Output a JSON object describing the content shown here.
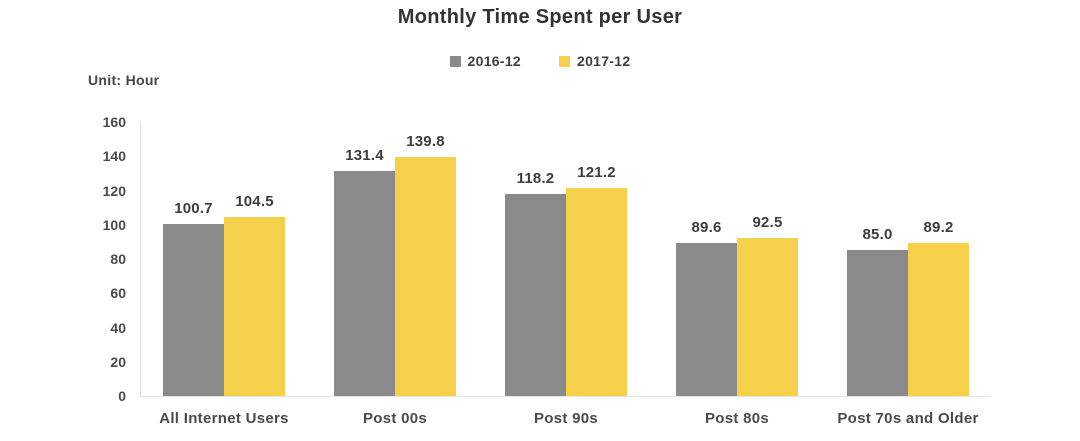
{
  "title": "Monthly Time Spent per User",
  "unit_label": "Unit: Hour",
  "colors": {
    "series_2016": "#8a8a8a",
    "series_2017": "#f5d04b",
    "axis_line": "#e0e0e0",
    "text": "#4a4a4a",
    "title_text": "#333333"
  },
  "legend": [
    {
      "label": "2016-12",
      "color": "#8a8a8a"
    },
    {
      "label": "2017-12",
      "color": "#f5d04b"
    }
  ],
  "chart_data": {
    "type": "bar",
    "title": "Monthly Time Spent per User",
    "categories": [
      "All Internet Users",
      "Post 00s",
      "Post 90s",
      "Post 80s",
      "Post 70s and Older"
    ],
    "series": [
      {
        "name": "2016-12",
        "color": "#8a8a8a",
        "values": [
          100.7,
          131.4,
          118.2,
          89.6,
          85.0
        ]
      },
      {
        "name": "2017-12",
        "color": "#f5d04b",
        "values": [
          104.5,
          139.8,
          121.2,
          92.5,
          89.2
        ]
      }
    ],
    "xlabel": "",
    "ylabel": "Unit: Hour",
    "ylim": [
      0,
      160
    ],
    "yticks": [
      0,
      20,
      40,
      60,
      80,
      100,
      120,
      140,
      160
    ],
    "grid": false,
    "legend_position": "top",
    "value_labels_shown": true,
    "value_label_decimals": 1
  }
}
